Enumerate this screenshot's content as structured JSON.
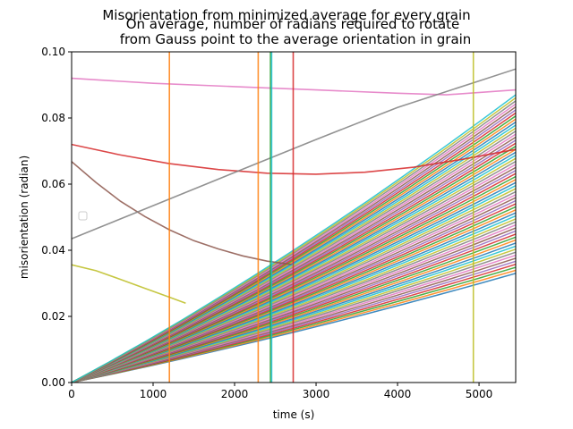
{
  "chart_data": {
    "type": "line",
    "title": "Misorientation from minimized average for every grain",
    "subtitle_line1": "On average, number of radians required to rotate",
    "subtitle_line2": "from Gauss point to the average orientation in grain",
    "xlabel": "time (s)",
    "ylabel": "misorientation (radian)",
    "xlim": [
      0,
      5450
    ],
    "ylim": [
      0.0,
      0.1
    ],
    "x_ticks": [
      0,
      1000,
      2000,
      3000,
      4000,
      5000
    ],
    "x_tick_labels": [
      "0",
      "1000",
      "2000",
      "3000",
      "4000",
      "5000"
    ],
    "y_ticks": [
      0.0,
      0.02,
      0.04,
      0.06,
      0.08,
      0.1
    ],
    "y_tick_labels": [
      "0.00",
      "0.02",
      "0.04",
      "0.06",
      "0.08",
      "0.10"
    ],
    "grid": false,
    "legend": "empty box, middle-left",
    "highlighted_series": [
      {
        "color": "#e377c2",
        "x": [
          0,
          1000,
          2000,
          3000,
          4000,
          4600,
          5450
        ],
        "y": [
          0.092,
          0.0905,
          0.0895,
          0.0885,
          0.0875,
          0.087,
          0.0885
        ]
      },
      {
        "color": "#d62728",
        "x": [
          0,
          600,
          1200,
          1800,
          2400,
          3000,
          3600,
          4200,
          4800,
          5450
        ],
        "y": [
          0.072,
          0.0688,
          0.0662,
          0.0644,
          0.0633,
          0.063,
          0.0636,
          0.0651,
          0.0675,
          0.0705
        ]
      },
      {
        "color": "#8c564b",
        "x": [
          0,
          300,
          600,
          900,
          1200,
          1500,
          1800,
          2100,
          2400,
          2700
        ],
        "y": [
          0.0668,
          0.0605,
          0.0548,
          0.0502,
          0.0462,
          0.0429,
          0.0404,
          0.0383,
          0.0367,
          0.0357
        ]
      },
      {
        "color": "#7f7f7f",
        "x": [
          0,
          1000,
          2000,
          3000,
          4000,
          5000,
          5450
        ],
        "y": [
          0.0435,
          0.0535,
          0.0635,
          0.0735,
          0.0832,
          0.0912,
          0.0948
        ]
      },
      {
        "color": "#bcbd22",
        "x": [
          0,
          300,
          600,
          900,
          1200,
          1400
        ],
        "y": [
          0.0356,
          0.0338,
          0.0312,
          0.0285,
          0.0258,
          0.024
        ]
      },
      {
        "color": "#ff7f0e",
        "x": [
          1200,
          1200
        ],
        "y": [
          0.0,
          0.1
        ]
      },
      {
        "color": "#ff7f0e",
        "x": [
          2290,
          2290
        ],
        "y": [
          0.0,
          0.1
        ]
      },
      {
        "color": "#2ca02c",
        "x": [
          2440,
          2440
        ],
        "y": [
          0.0,
          0.1
        ]
      },
      {
        "color": "#17becf",
        "x": [
          2455,
          2455
        ],
        "y": [
          0.0,
          0.1
        ]
      },
      {
        "color": "#d62728",
        "x": [
          2720,
          2720
        ],
        "y": [
          0.0,
          0.1
        ]
      },
      {
        "color": "#bcbd22",
        "x": [
          4930,
          4930
        ],
        "y": [
          0.0,
          0.1
        ]
      }
    ],
    "fan_series": {
      "description": "many grain curves rising from the origin",
      "colors": [
        "#1f77b4",
        "#ff7f0e",
        "#2ca02c",
        "#d62728",
        "#9467bd",
        "#8c564b",
        "#e377c2",
        "#7f7f7f",
        "#bcbd22",
        "#17becf"
      ],
      "x": [
        0,
        5450
      ],
      "y_at_5450_min": 0.033,
      "y_at_5450_max": 0.087,
      "count": 60
    }
  }
}
